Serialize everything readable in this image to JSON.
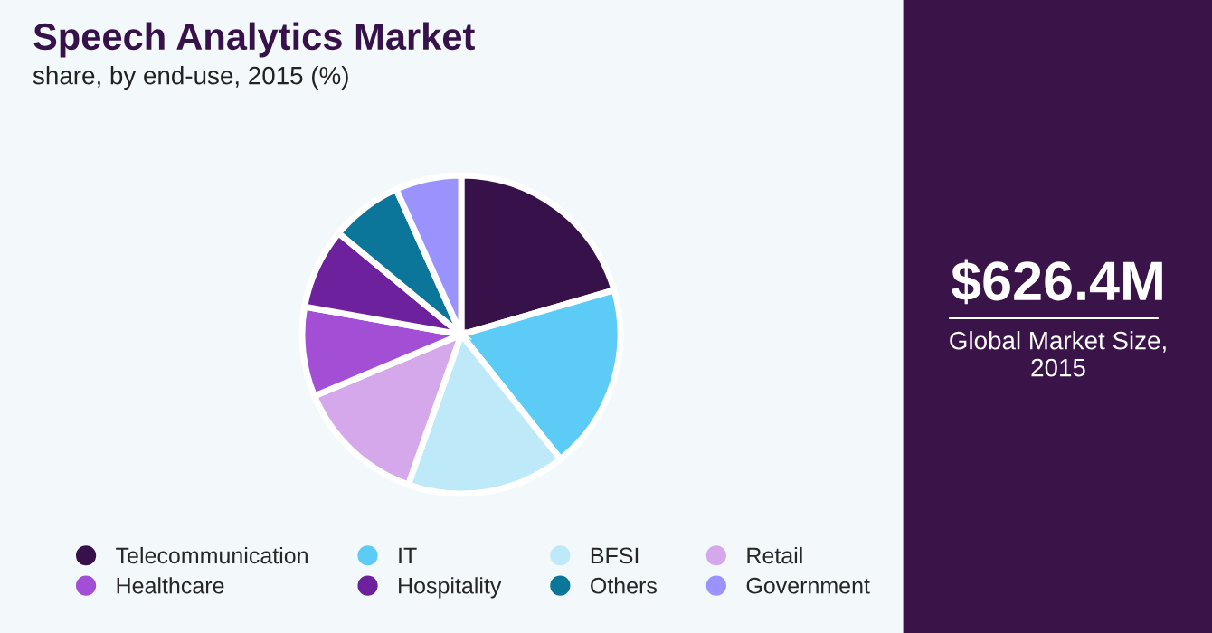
{
  "chart_data": {
    "type": "pie",
    "title": "Speech Analytics Market",
    "subtitle": "share, by end-use, 2015 (%)",
    "categories": [
      "Telecommunication",
      "IT",
      "BFSI",
      "Retail",
      "Healthcare",
      "Hospitality",
      "Others",
      "Government"
    ],
    "values": [
      20.5,
      18.8,
      16.1,
      13.3,
      9.1,
      8.2,
      7.3,
      6.7
    ],
    "colors": [
      "#37124a",
      "#5ccbf5",
      "#bde9f9",
      "#d4a8ea",
      "#a24fd6",
      "#6e219c",
      "#0b7699",
      "#9a93fd"
    ],
    "legend": "bottom",
    "annotations": [
      "$626.4M",
      "Global Market Size,\n2015"
    ]
  }
}
